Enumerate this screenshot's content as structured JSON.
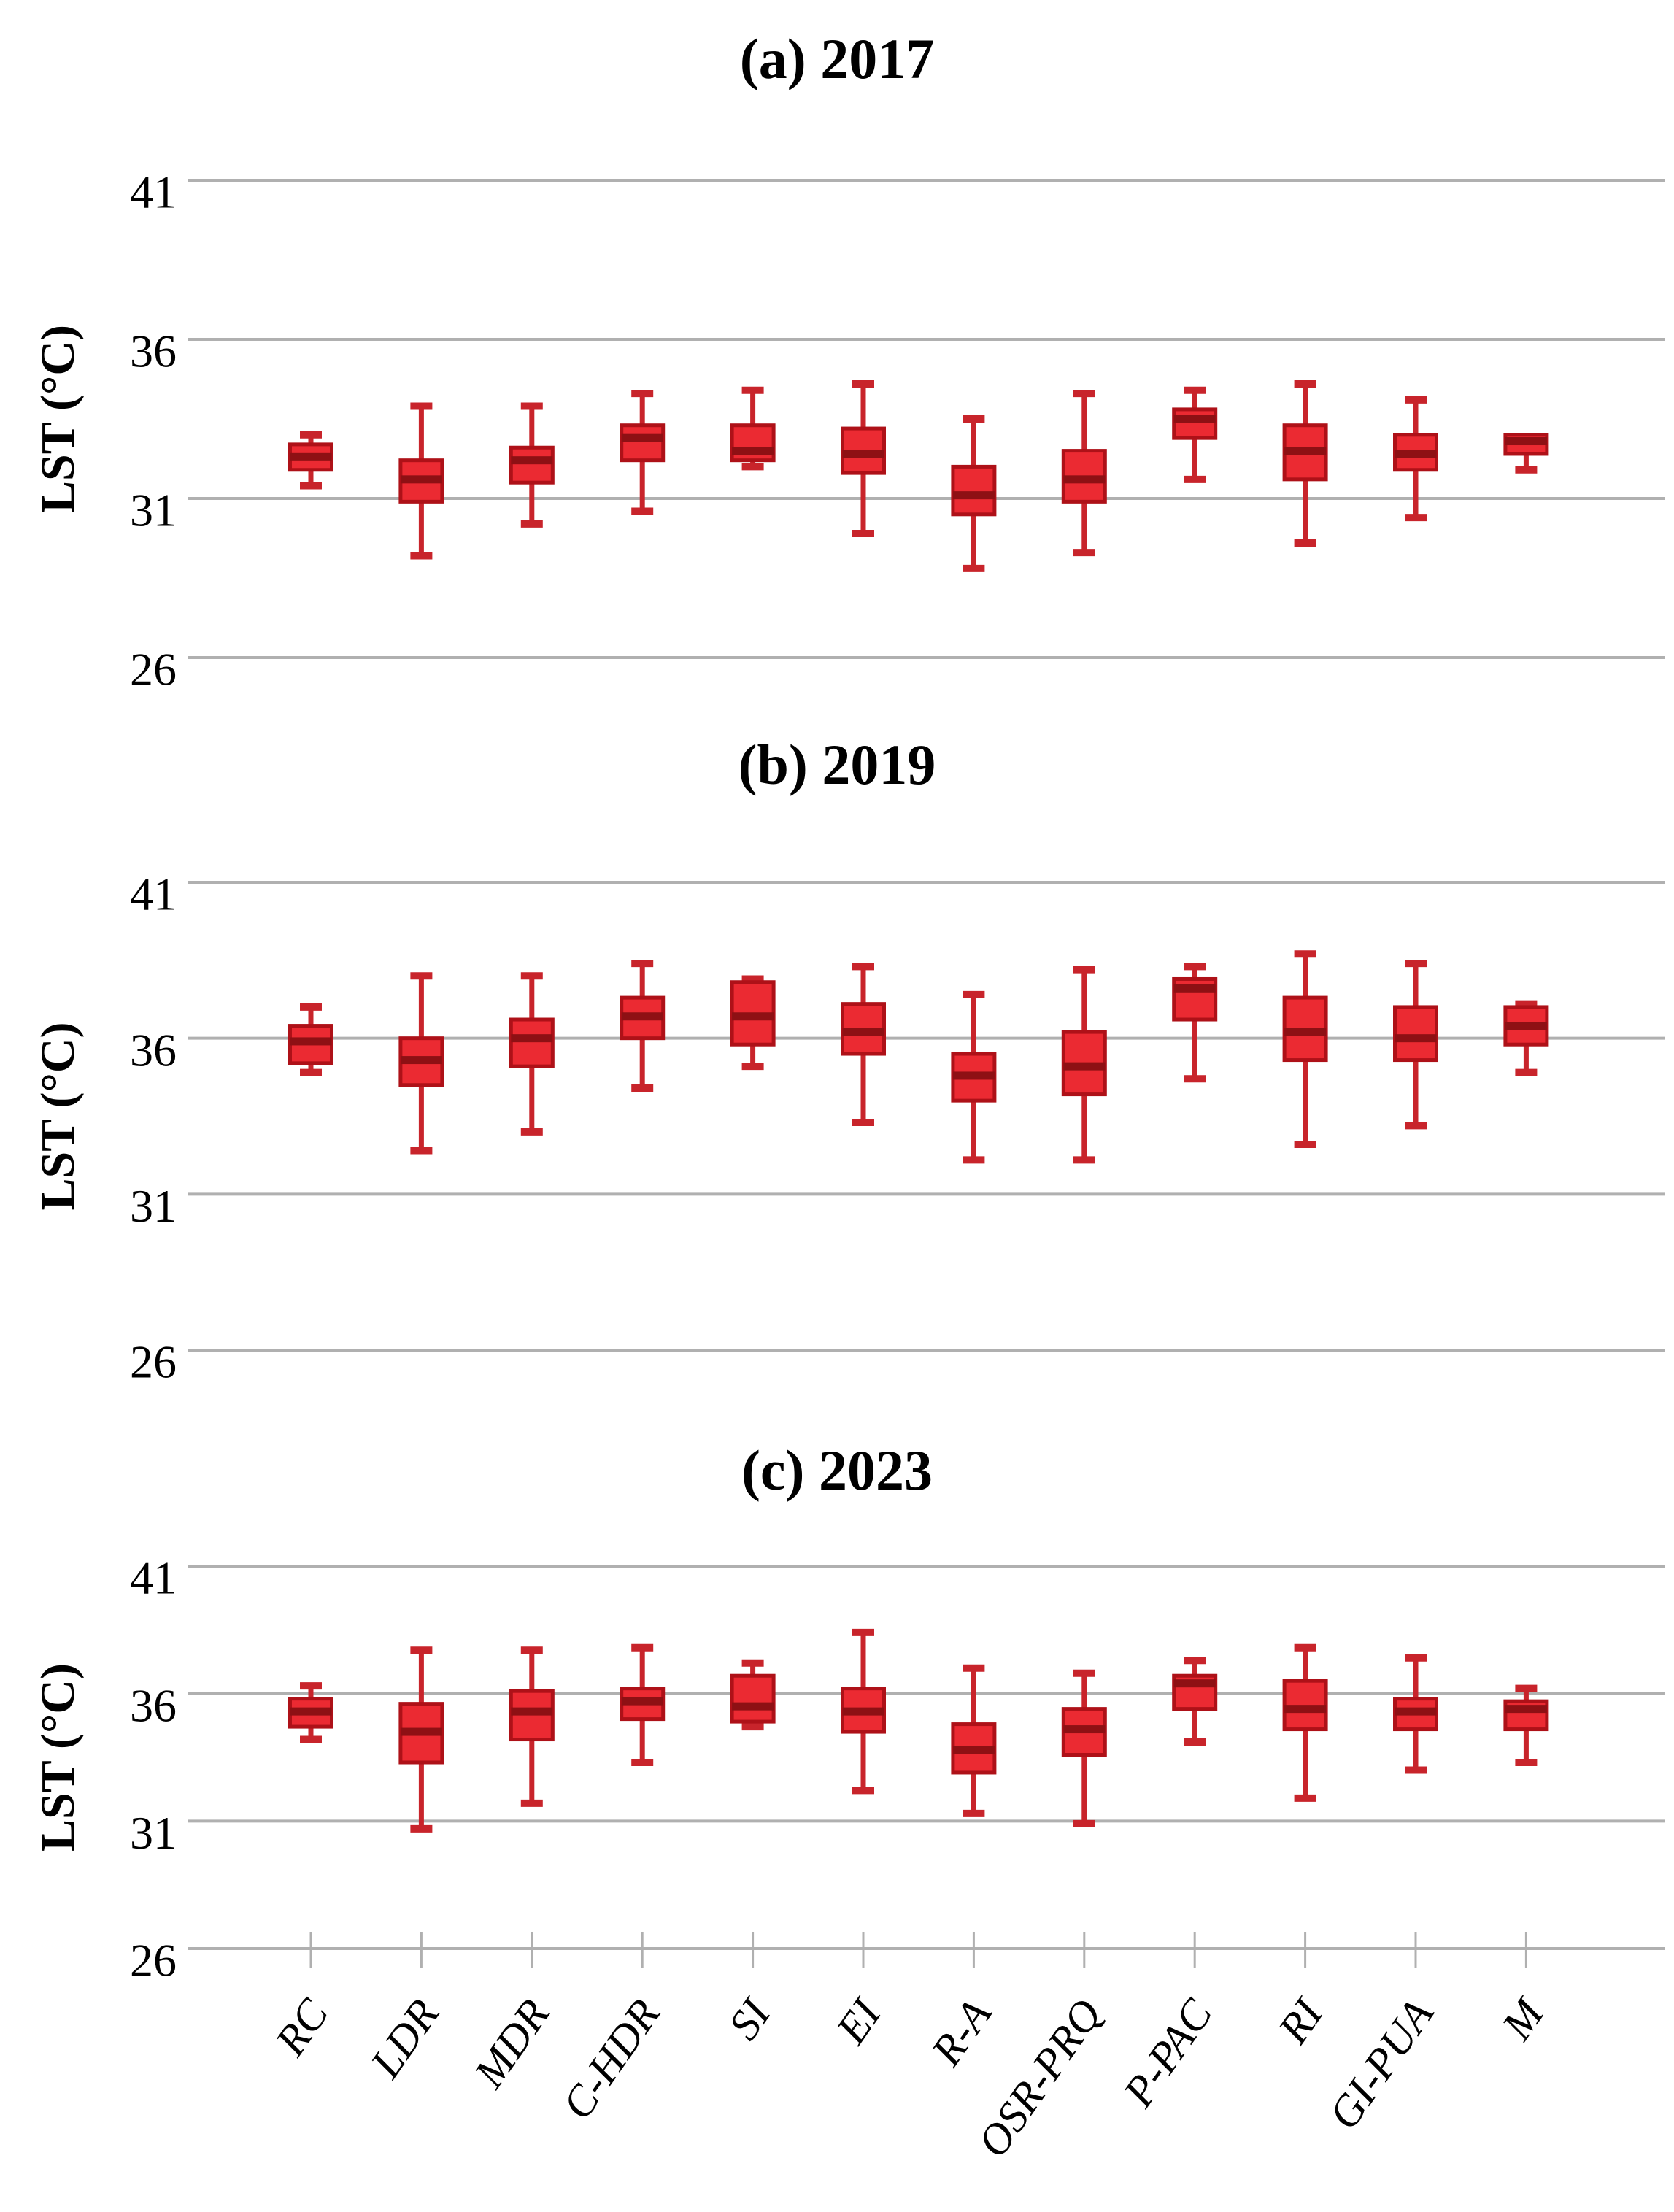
{
  "figure": {
    "ylabel": "LST (°C)",
    "y_ticks": [
      41,
      36,
      31,
      26
    ],
    "panel_titles": [
      "(a) 2017",
      "(b) 2019",
      "(c) 2023"
    ]
  },
  "style": {
    "background": "#FFFFFF",
    "grid": "#B0B0B0",
    "box_fill": "#EB2A32",
    "box_stroke": "#AE1118",
    "median": "#8E1014",
    "whisker": "#C8242B",
    "text": "#000000"
  },
  "categories": [
    "RC",
    "LDR",
    "MDR",
    "C-HDR",
    "SI",
    "EI",
    "R-A",
    "OSR-PRQ",
    "P-PAC",
    "RI",
    "GI-PUA",
    "M"
  ],
  "chart_data": [
    {
      "type": "box",
      "title": "(a) 2017",
      "ylabel": "LST (°C)",
      "yticks": [
        41,
        36,
        31,
        26
      ],
      "ylim": [
        24.5,
        43
      ],
      "grid": true,
      "show_x_labels": false,
      "categories": [
        "RC",
        "LDR",
        "MDR",
        "C-HDR",
        "SI",
        "EI",
        "R-A",
        "OSR-PRQ",
        "P-PAC",
        "RI",
        "GI-PUA",
        "M"
      ],
      "series": [
        {
          "name": "RC",
          "whislo": 31.4,
          "q1": 31.9,
          "med": 32.3,
          "q3": 32.7,
          "whishi": 33.0
        },
        {
          "name": "LDR",
          "whislo": 29.2,
          "q1": 30.9,
          "med": 31.6,
          "q3": 32.2,
          "whishi": 33.9
        },
        {
          "name": "MDR",
          "whislo": 30.2,
          "q1": 31.5,
          "med": 32.2,
          "q3": 32.6,
          "whishi": 33.9
        },
        {
          "name": "C-HDR",
          "whislo": 30.6,
          "q1": 32.2,
          "med": 32.9,
          "q3": 33.3,
          "whishi": 34.3
        },
        {
          "name": "SI",
          "whislo": 32.0,
          "q1": 32.2,
          "med": 32.5,
          "q3": 33.3,
          "whishi": 34.4
        },
        {
          "name": "EI",
          "whislo": 29.9,
          "q1": 31.8,
          "med": 32.4,
          "q3": 33.2,
          "whishi": 34.6
        },
        {
          "name": "R-A",
          "whislo": 28.8,
          "q1": 30.5,
          "med": 31.1,
          "q3": 32.0,
          "whishi": 33.5
        },
        {
          "name": "OSR-PRQ",
          "whislo": 29.3,
          "q1": 30.9,
          "med": 31.6,
          "q3": 32.5,
          "whishi": 34.3
        },
        {
          "name": "P-PAC",
          "whislo": 31.6,
          "q1": 32.9,
          "med": 33.5,
          "q3": 33.8,
          "whishi": 34.4
        },
        {
          "name": "RI",
          "whislo": 29.6,
          "q1": 31.6,
          "med": 32.5,
          "q3": 33.3,
          "whishi": 34.6
        },
        {
          "name": "GI-PUA",
          "whislo": 30.4,
          "q1": 31.9,
          "med": 32.4,
          "q3": 33.0,
          "whishi": 34.1
        },
        {
          "name": "M",
          "whislo": 31.9,
          "q1": 32.4,
          "med": 32.8,
          "q3": 33.0,
          "whishi": 33.0
        }
      ]
    },
    {
      "type": "box",
      "title": "(b) 2019",
      "ylabel": "LST (°C)",
      "yticks": [
        41,
        36,
        31,
        26
      ],
      "ylim": [
        24.5,
        43
      ],
      "grid": true,
      "show_x_labels": false,
      "categories": [
        "RC",
        "LDR",
        "MDR",
        "C-HDR",
        "SI",
        "EI",
        "R-A",
        "OSR-PRQ",
        "P-PAC",
        "RI",
        "GI-PUA",
        "M"
      ],
      "series": [
        {
          "name": "RC",
          "whislo": 34.9,
          "q1": 35.2,
          "med": 35.9,
          "q3": 36.4,
          "whishi": 37.0
        },
        {
          "name": "LDR",
          "whislo": 32.4,
          "q1": 34.5,
          "med": 35.3,
          "q3": 36.0,
          "whishi": 38.0
        },
        {
          "name": "MDR",
          "whislo": 33.0,
          "q1": 35.1,
          "med": 36.0,
          "q3": 36.6,
          "whishi": 38.0
        },
        {
          "name": "C-HDR",
          "whislo": 34.4,
          "q1": 36.0,
          "med": 36.7,
          "q3": 37.3,
          "whishi": 38.4
        },
        {
          "name": "SI",
          "whislo": 35.1,
          "q1": 35.8,
          "med": 36.7,
          "q3": 37.8,
          "whishi": 37.9
        },
        {
          "name": "EI",
          "whislo": 33.3,
          "q1": 35.5,
          "med": 36.2,
          "q3": 37.1,
          "whishi": 38.3
        },
        {
          "name": "R-A",
          "whislo": 32.1,
          "q1": 34.0,
          "med": 34.8,
          "q3": 35.5,
          "whishi": 37.4
        },
        {
          "name": "OSR-PRQ",
          "whislo": 32.1,
          "q1": 34.2,
          "med": 35.1,
          "q3": 36.2,
          "whishi": 38.2
        },
        {
          "name": "P-PAC",
          "whislo": 34.7,
          "q1": 36.6,
          "med": 37.6,
          "q3": 37.9,
          "whishi": 38.3
        },
        {
          "name": "RI",
          "whislo": 32.6,
          "q1": 35.3,
          "med": 36.2,
          "q3": 37.3,
          "whishi": 38.7
        },
        {
          "name": "GI-PUA",
          "whislo": 33.2,
          "q1": 35.3,
          "med": 36.0,
          "q3": 37.0,
          "whishi": 38.4
        },
        {
          "name": "M",
          "whislo": 34.9,
          "q1": 35.8,
          "med": 36.4,
          "q3": 37.0,
          "whishi": 37.1
        }
      ]
    },
    {
      "type": "box",
      "title": "(c) 2023",
      "ylabel": "LST (°C)",
      "yticks": [
        41,
        36,
        31,
        26
      ],
      "ylim": [
        24.5,
        43
      ],
      "grid": true,
      "show_x_labels": true,
      "x_label_rotation_deg": 55,
      "categories": [
        "RC",
        "LDR",
        "MDR",
        "C-HDR",
        "SI",
        "EI",
        "R-A",
        "OSR-PRQ",
        "P-PAC",
        "RI",
        "GI-PUA",
        "M"
      ],
      "series": [
        {
          "name": "RC",
          "whislo": 34.2,
          "q1": 34.7,
          "med": 35.3,
          "q3": 35.8,
          "whishi": 36.3
        },
        {
          "name": "LDR",
          "whislo": 30.7,
          "q1": 33.3,
          "med": 34.5,
          "q3": 35.6,
          "whishi": 37.7
        },
        {
          "name": "MDR",
          "whislo": 31.7,
          "q1": 34.2,
          "med": 35.3,
          "q3": 36.1,
          "whishi": 37.7
        },
        {
          "name": "C-HDR",
          "whislo": 33.3,
          "q1": 35.0,
          "med": 35.7,
          "q3": 36.2,
          "whishi": 37.8
        },
        {
          "name": "SI",
          "whislo": 34.7,
          "q1": 34.9,
          "med": 35.5,
          "q3": 36.7,
          "whishi": 37.2
        },
        {
          "name": "EI",
          "whislo": 32.2,
          "q1": 34.5,
          "med": 35.3,
          "q3": 36.2,
          "whishi": 38.4
        },
        {
          "name": "R-A",
          "whislo": 31.3,
          "q1": 32.9,
          "med": 33.8,
          "q3": 34.8,
          "whishi": 37.0
        },
        {
          "name": "OSR-PRQ",
          "whislo": 30.9,
          "q1": 33.6,
          "med": 34.6,
          "q3": 35.4,
          "whishi": 36.8
        },
        {
          "name": "P-PAC",
          "whislo": 34.1,
          "q1": 35.4,
          "med": 36.4,
          "q3": 36.7,
          "whishi": 37.3
        },
        {
          "name": "RI",
          "whislo": 31.9,
          "q1": 34.6,
          "med": 35.4,
          "q3": 36.5,
          "whishi": 37.8
        },
        {
          "name": "GI-PUA",
          "whislo": 33.0,
          "q1": 34.6,
          "med": 35.3,
          "q3": 35.8,
          "whishi": 37.4
        },
        {
          "name": "M",
          "whislo": 33.3,
          "q1": 34.6,
          "med": 35.4,
          "q3": 35.7,
          "whishi": 36.2
        }
      ]
    }
  ]
}
